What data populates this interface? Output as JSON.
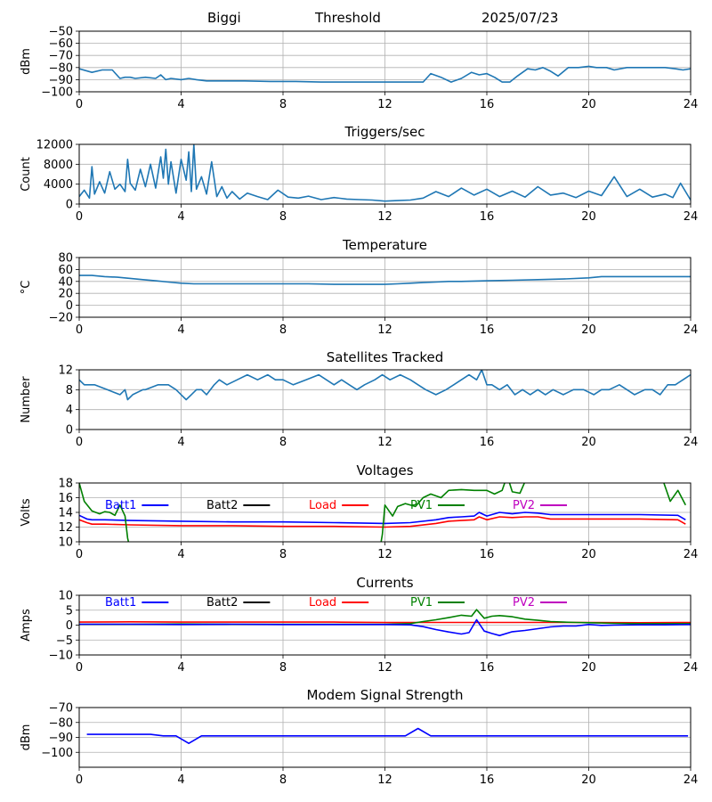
{
  "header": {
    "station": "Biggi",
    "plot_name": "Threshold",
    "date": "2025/07/23"
  },
  "colors": {
    "default_line": "#1f77b4",
    "grid": "#b0b0b0",
    "Batt1": "#0000ff",
    "Batt2": "#000000",
    "Load": "#ff0000",
    "PV1": "#008000",
    "PV2": "#bf00bf"
  },
  "chart_data": [
    {
      "type": "line",
      "title": "",
      "ylabel": "dBm",
      "xlim": [
        0,
        24
      ],
      "ylim": [
        -100,
        -50
      ],
      "x_ticks": [
        "0",
        "4",
        "8",
        "12",
        "16",
        "20",
        "24"
      ],
      "y_ticks": [
        "−100",
        "−90",
        "−80",
        "−70",
        "−60",
        "−50"
      ],
      "series": [
        {
          "x": [
            0,
            0.5,
            0.9,
            1.3,
            1.6,
            1.8,
            2.0,
            2.2,
            2.6,
            3.0,
            3.2,
            3.4,
            3.6,
            4.0,
            4.3,
            4.6,
            5.0,
            5.5,
            6.5,
            7.5,
            8.5,
            9.5,
            10.5,
            11.5,
            12.5,
            13.0,
            13.5,
            13.8,
            14.2,
            14.6,
            15.0,
            15.4,
            15.7,
            16.0,
            16.3,
            16.6,
            16.9,
            17.2,
            17.6,
            17.9,
            18.2,
            18.5,
            18.8,
            19.2,
            19.6,
            20.0,
            20.3,
            20.7,
            21.0,
            21.5,
            22.0,
            22.5,
            23.0,
            23.4,
            23.7,
            24.0
          ],
          "y": [
            -81,
            -84,
            -82,
            -82,
            -89,
            -88,
            -88,
            -89,
            -88,
            -89,
            -86,
            -90,
            -89,
            -90,
            -89,
            -90,
            -91,
            -91,
            -91,
            -91.5,
            -91.5,
            -92,
            -92,
            -92,
            -92,
            -92,
            -92,
            -85,
            -88,
            -92,
            -89,
            -84,
            -86,
            -85,
            -88,
            -92,
            -92,
            -87,
            -81,
            -82,
            -80,
            -83,
            -87,
            -80,
            -80,
            -79,
            -80,
            -80,
            -82,
            -80,
            -80,
            -80,
            -80,
            -81,
            -82,
            -81
          ]
        }
      ]
    },
    {
      "type": "line",
      "title": "Triggers/sec",
      "ylabel": "Count",
      "xlim": [
        0,
        24
      ],
      "ylim": [
        0,
        12000
      ],
      "x_ticks": [
        "0",
        "4",
        "8",
        "12",
        "16",
        "20",
        "24"
      ],
      "y_ticks": [
        "0",
        "4000",
        "8000",
        "12000"
      ],
      "series": [
        {
          "x": [
            0,
            0.2,
            0.4,
            0.5,
            0.6,
            0.8,
            1.0,
            1.2,
            1.4,
            1.6,
            1.8,
            1.9,
            2.0,
            2.2,
            2.4,
            2.6,
            2.8,
            3.0,
            3.2,
            3.3,
            3.4,
            3.5,
            3.6,
            3.8,
            4.0,
            4.2,
            4.3,
            4.4,
            4.5,
            4.6,
            4.8,
            5.0,
            5.2,
            5.4,
            5.6,
            5.8,
            6.0,
            6.3,
            6.6,
            7.0,
            7.4,
            7.8,
            8.2,
            8.6,
            9.0,
            9.5,
            10.0,
            10.5,
            11.0,
            11.5,
            12.0,
            12.5,
            13.0,
            13.5,
            14.0,
            14.5,
            15.0,
            15.5,
            16.0,
            16.5,
            17.0,
            17.5,
            18.0,
            18.5,
            19.0,
            19.5,
            20.0,
            20.5,
            21.0,
            21.5,
            22.0,
            22.5,
            23.0,
            23.3,
            23.6,
            24.0
          ],
          "y": [
            1500,
            2800,
            1200,
            7500,
            2000,
            4500,
            2200,
            6500,
            3000,
            4000,
            2500,
            9000,
            4200,
            2800,
            7000,
            3500,
            8000,
            3200,
            9500,
            5200,
            11000,
            4000,
            8500,
            2200,
            9000,
            4800,
            10500,
            2500,
            12000,
            3000,
            5500,
            2000,
            8500,
            1500,
            3500,
            1200,
            2500,
            1000,
            2200,
            1500,
            900,
            2800,
            1400,
            1200,
            1600,
            900,
            1300,
            1000,
            900,
            800,
            600,
            700,
            800,
            1200,
            2500,
            1500,
            3200,
            1800,
            3000,
            1500,
            2600,
            1400,
            3500,
            1800,
            2200,
            1300,
            2600,
            1700,
            5500,
            1500,
            3000,
            1400,
            2000,
            1300,
            4200,
            800
          ]
        }
      ]
    },
    {
      "type": "line",
      "title": "Temperature",
      "ylabel": "°C",
      "xlim": [
        0,
        24
      ],
      "ylim": [
        -20,
        80
      ],
      "x_ticks": [
        "0",
        "4",
        "8",
        "12",
        "16",
        "20",
        "24"
      ],
      "y_ticks": [
        "−20",
        "0",
        "20",
        "40",
        "60",
        "80"
      ],
      "series": [
        {
          "x": [
            0,
            0.5,
            1.0,
            1.5,
            2.0,
            2.5,
            3.0,
            3.5,
            4.0,
            4.5,
            5.0,
            6.0,
            7.0,
            8.0,
            9.0,
            10.0,
            11.0,
            12.0,
            12.5,
            13.0,
            13.5,
            14.0,
            14.5,
            15.0,
            16.0,
            17.0,
            18.0,
            19.0,
            20.0,
            20.5,
            21.0,
            22.0,
            23.0,
            24.0
          ],
          "y": [
            50,
            50,
            48,
            47,
            45,
            43,
            41,
            39,
            37,
            36,
            36,
            36,
            36,
            36,
            36,
            35,
            35,
            35,
            36,
            37,
            38,
            39,
            40,
            40,
            41,
            42,
            43,
            44,
            46,
            48,
            48,
            48,
            48,
            48
          ]
        }
      ]
    },
    {
      "type": "line",
      "title": "Satellites Tracked",
      "ylabel": "Number",
      "xlim": [
        0,
        24
      ],
      "ylim": [
        0,
        12
      ],
      "x_ticks": [
        "0",
        "4",
        "8",
        "12",
        "16",
        "20",
        "24"
      ],
      "y_ticks": [
        "0",
        "4",
        "8",
        "12"
      ],
      "series": [
        {
          "x": [
            0,
            0.2,
            0.6,
            1.1,
            1.6,
            1.8,
            1.9,
            2.1,
            2.5,
            2.6,
            3.1,
            3.5,
            3.8,
            4.0,
            4.2,
            4.4,
            4.6,
            4.8,
            5.0,
            5.3,
            5.5,
            5.8,
            6.2,
            6.6,
            7.0,
            7.4,
            7.7,
            8.0,
            8.4,
            8.9,
            9.4,
            9.7,
            10.0,
            10.3,
            10.6,
            10.9,
            11.2,
            11.6,
            11.9,
            12.2,
            12.6,
            13.0,
            13.3,
            13.6,
            14.0,
            14.4,
            14.7,
            15.0,
            15.3,
            15.6,
            15.8,
            16.0,
            16.2,
            16.5,
            16.8,
            17.1,
            17.4,
            17.7,
            18.0,
            18.3,
            18.6,
            19.0,
            19.4,
            19.8,
            20.2,
            20.5,
            20.8,
            21.2,
            21.5,
            21.8,
            22.2,
            22.5,
            22.8,
            23.1,
            23.4,
            23.7,
            24.0
          ],
          "y": [
            10,
            9,
            9,
            8,
            7,
            8,
            6,
            7,
            8,
            8,
            9,
            9,
            8,
            7,
            6,
            7,
            8,
            8,
            7,
            9,
            10,
            9,
            10,
            11,
            10,
            11,
            10,
            10,
            9,
            10,
            11,
            10,
            9,
            10,
            9,
            8,
            9,
            10,
            11,
            10,
            11,
            10,
            9,
            8,
            7,
            8,
            9,
            10,
            11,
            10,
            12,
            9,
            9,
            8,
            9,
            7,
            8,
            7,
            8,
            7,
            8,
            7,
            8,
            8,
            7,
            8,
            8,
            9,
            8,
            7,
            8,
            8,
            7,
            9,
            9,
            10,
            11
          ]
        }
      ]
    },
    {
      "type": "line",
      "title": "Voltages",
      "ylabel": "Volts",
      "xlim": [
        0,
        24
      ],
      "ylim": [
        10,
        18
      ],
      "x_ticks": [
        "0",
        "4",
        "8",
        "12",
        "16",
        "20",
        "24"
      ],
      "y_ticks": [
        "10",
        "12",
        "14",
        "16",
        "18"
      ],
      "legend": [
        "Batt1",
        "Batt2",
        "Load",
        "PV1",
        "PV2"
      ],
      "series": [
        {
          "name": "Batt1",
          "color": "#0000ff",
          "x": [
            0,
            0.3,
            0.5,
            1,
            2,
            4,
            6,
            8,
            10,
            12,
            13,
            14,
            14.5,
            15,
            15.5,
            15.7,
            16,
            16.5,
            17,
            17.5,
            18,
            18.5,
            19,
            20,
            22,
            23.5,
            23.8
          ],
          "y": [
            13.6,
            13.1,
            13.0,
            13.0,
            12.9,
            12.8,
            12.7,
            12.7,
            12.6,
            12.5,
            12.6,
            13.0,
            13.3,
            13.4,
            13.5,
            14.0,
            13.5,
            14.0,
            13.8,
            14.0,
            13.9,
            13.7,
            13.7,
            13.7,
            13.7,
            13.6,
            13.0
          ]
        },
        {
          "name": "Load",
          "color": "#ff0000",
          "x": [
            0,
            0.3,
            0.5,
            1,
            2,
            4,
            6,
            8,
            10,
            12,
            13,
            14,
            14.5,
            15,
            15.5,
            15.7,
            16,
            16.5,
            17,
            17.5,
            18,
            18.5,
            19,
            20,
            22,
            23.5,
            23.8
          ],
          "y": [
            13.0,
            12.6,
            12.4,
            12.4,
            12.3,
            12.2,
            12.2,
            12.1,
            12.1,
            12.0,
            12.1,
            12.5,
            12.8,
            12.9,
            13.0,
            13.4,
            13.0,
            13.4,
            13.3,
            13.4,
            13.4,
            13.1,
            13.1,
            13.1,
            13.1,
            13.0,
            12.4
          ]
        },
        {
          "name": "PV1",
          "color": "#008000",
          "x": [
            0,
            0.2,
            0.5,
            0.8,
            1.0,
            1.2,
            1.4,
            1.5,
            1.6,
            1.8,
            1.9,
            2.0
          ],
          "y": [
            18.0,
            15.5,
            14.2,
            13.8,
            14.1,
            14.0,
            13.6,
            14.3,
            15.0,
            13.5,
            10.5,
            9.0
          ]
        },
        {
          "name": "PV1",
          "color": "#008000",
          "x": [
            11.8,
            11.9,
            12.0,
            12.3,
            12.5,
            12.8,
            13.2,
            13.5,
            13.8,
            14.2,
            14.5,
            15.0,
            15.5,
            16.0,
            16.3,
            16.6,
            16.8,
            17.0,
            17.3,
            17.6
          ],
          "y": [
            9.0,
            11.0,
            15.0,
            13.5,
            14.8,
            15.2,
            14.8,
            16.0,
            16.5,
            16.0,
            17.0,
            17.1,
            17.0,
            17.0,
            16.5,
            17.0,
            19.0,
            16.8,
            16.6,
            19.0
          ]
        },
        {
          "name": "PV1",
          "color": "#008000",
          "x": [
            22.9,
            23.2,
            23.5,
            23.8
          ],
          "y": [
            18.5,
            15.5,
            17.0,
            15.0
          ]
        }
      ]
    },
    {
      "type": "line",
      "title": "Currents",
      "ylabel": "Amps",
      "xlim": [
        0,
        24
      ],
      "ylim": [
        -10,
        10
      ],
      "x_ticks": [
        "0",
        "4",
        "8",
        "12",
        "16",
        "20",
        "24"
      ],
      "y_ticks": [
        "−10",
        "−5",
        "0",
        "5",
        "10"
      ],
      "legend": [
        "Batt1",
        "Batt2",
        "Load",
        "PV1",
        "PV2"
      ],
      "series": [
        {
          "name": "Load",
          "color": "#ff0000",
          "x": [
            0,
            2,
            4,
            6,
            8,
            10,
            12,
            14,
            16,
            18,
            20,
            22,
            24
          ],
          "y": [
            1.0,
            1.1,
            1.0,
            1.0,
            1.0,
            1.0,
            0.9,
            0.9,
            0.9,
            0.9,
            0.9,
            0.8,
            0.9
          ]
        },
        {
          "name": "PV1",
          "color": "#008000",
          "x": [
            0,
            2,
            4,
            6,
            8,
            10,
            12,
            13,
            13.5,
            14,
            14.5,
            15,
            15.4,
            15.6,
            15.9,
            16.2,
            16.5,
            17,
            17.5,
            18,
            18.5,
            19,
            19.5,
            20,
            21,
            22,
            23,
            24
          ],
          "y": [
            0.3,
            0.3,
            0.4,
            0.3,
            0.3,
            0.3,
            0.3,
            0.5,
            1.2,
            1.8,
            2.5,
            3.3,
            3.0,
            5.2,
            2.3,
            3.0,
            3.2,
            2.8,
            2.0,
            1.6,
            1.2,
            1.0,
            0.9,
            0.8,
            0.6,
            0.5,
            0.5,
            0.5
          ]
        },
        {
          "name": "Batt1",
          "color": "#0000ff",
          "x": [
            0,
            2,
            4,
            6,
            8,
            10,
            12,
            13,
            13.5,
            14,
            14.5,
            15,
            15.3,
            15.6,
            15.9,
            16.2,
            16.5,
            17,
            17.5,
            18,
            18.5,
            19,
            19.5,
            20,
            20.5,
            21,
            22,
            23,
            24
          ],
          "y": [
            0.3,
            0.3,
            0.2,
            0.3,
            0.2,
            0.2,
            0.2,
            0.1,
            -0.5,
            -1.5,
            -2.3,
            -3.0,
            -2.5,
            1.8,
            -2.0,
            -2.8,
            -3.5,
            -2.2,
            -1.8,
            -1.2,
            -0.6,
            -0.3,
            -0.3,
            0.2,
            -0.1,
            0.0,
            0.1,
            0.1,
            0.2
          ]
        }
      ]
    },
    {
      "type": "line",
      "title": "Modem Signal Strength",
      "ylabel": "dBm",
      "xlim": [
        0,
        24
      ],
      "ylim": [
        -110,
        -70
      ],
      "x_ticks": [
        "0",
        "4",
        "8",
        "12",
        "16",
        "20",
        "24"
      ],
      "y_ticks": [
        "−100",
        "−90",
        "−80",
        "−70"
      ],
      "series": [
        {
          "color": "#0000ff",
          "x": [
            0.3,
            1.0,
            2.0,
            2.8,
            3.3,
            3.8,
            4.3,
            4.8,
            6.0,
            8.0,
            10.0,
            12.0,
            12.8,
            13.3,
            13.8,
            15.0,
            18.0,
            20.0,
            22.0,
            23.0,
            23.9
          ],
          "y": [
            -88,
            -88,
            -88,
            -88,
            -89,
            -89,
            -94,
            -89,
            -89,
            -89,
            -89,
            -89,
            -89,
            -84,
            -89,
            -89,
            -89,
            -89,
            -89,
            -89,
            -89
          ]
        }
      ]
    }
  ]
}
